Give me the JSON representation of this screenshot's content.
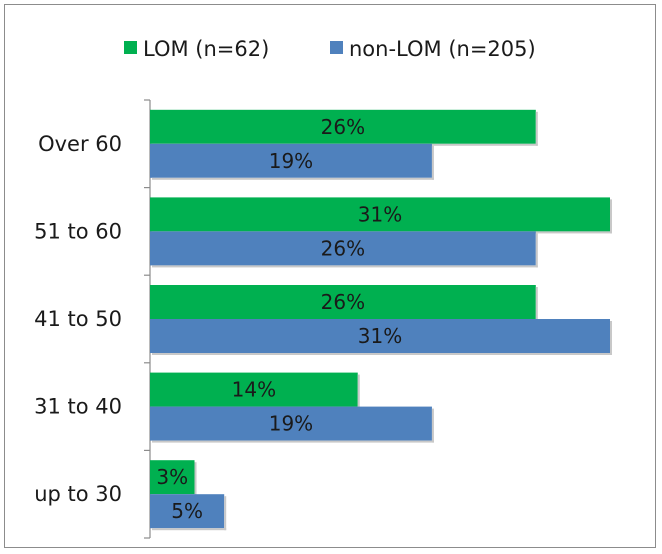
{
  "chart_data": {
    "type": "bar",
    "orientation": "horizontal",
    "categories": [
      "Over 60",
      "51 to 60",
      "41 to 50",
      "31 to 40",
      "up to 30"
    ],
    "series": [
      {
        "name": "LOM (n=62)",
        "color": "#00b050",
        "values": [
          26,
          31,
          26,
          14,
          3
        ],
        "labels": [
          "26%",
          "31%",
          "26%",
          "14%",
          "3%"
        ]
      },
      {
        "name": "non-LOM (n=205)",
        "color": "#4f81bd",
        "values": [
          19,
          26,
          31,
          19,
          5
        ],
        "labels": [
          "19%",
          "26%",
          "31%",
          "19%",
          "5%"
        ]
      }
    ],
    "value_unit": "%",
    "xlim": [
      0,
      31
    ],
    "value_axis_visible": false,
    "grid": false,
    "legend_position": "top",
    "title": "",
    "xlabel": "",
    "ylabel": ""
  }
}
